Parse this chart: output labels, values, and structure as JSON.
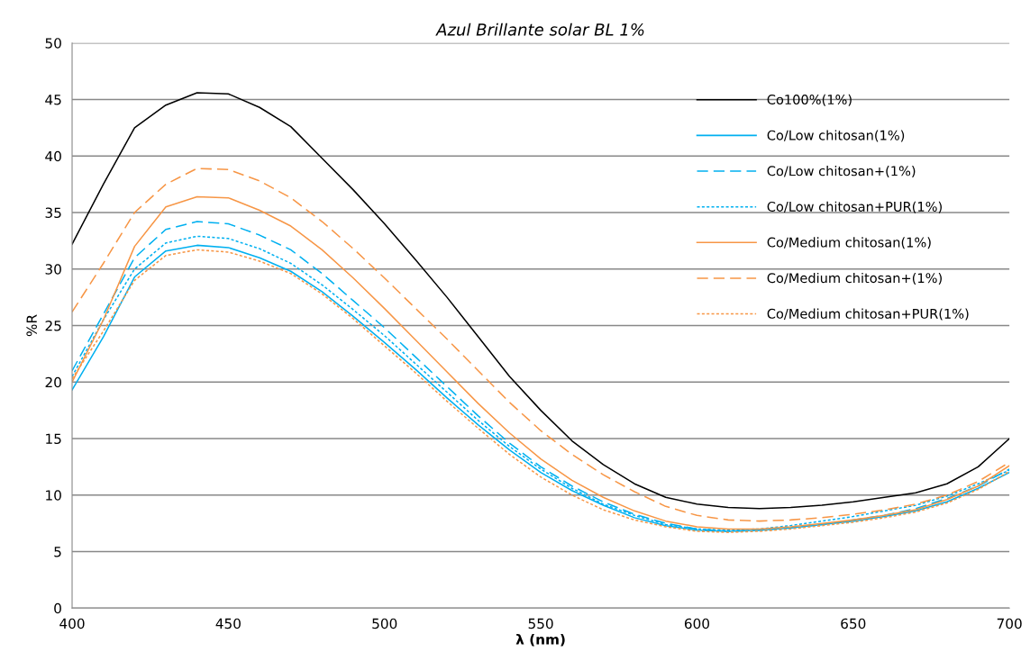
{
  "chart_data": {
    "type": "line",
    "title": "Azul Brillante solar BL 1%",
    "xlabel": "λ (nm)",
    "ylabel": "%R",
    "x": [
      400,
      410,
      420,
      430,
      440,
      450,
      460,
      470,
      480,
      490,
      500,
      510,
      520,
      530,
      540,
      550,
      560,
      570,
      580,
      590,
      600,
      610,
      620,
      630,
      640,
      650,
      660,
      670,
      680,
      690,
      700
    ],
    "xlim": [
      400,
      700
    ],
    "xticks": [
      400,
      450,
      500,
      550,
      600,
      650,
      700
    ],
    "ylim": [
      0,
      50
    ],
    "yticks": [
      0,
      5,
      10,
      15,
      20,
      25,
      30,
      35,
      40,
      45,
      50
    ],
    "grid": "y",
    "legend": "top right",
    "marker": "none",
    "series": [
      {
        "name": "Co100%(1%)",
        "color": "#000000",
        "line_style": "solid",
        "values": [
          32.2,
          37.5,
          42.5,
          44.5,
          45.6,
          45.5,
          44.3,
          42.6,
          39.8,
          37.0,
          34.0,
          30.8,
          27.5,
          24.0,
          20.5,
          17.5,
          14.8,
          12.7,
          11.0,
          9.8,
          9.2,
          8.9,
          8.8,
          8.9,
          9.1,
          9.4,
          9.8,
          10.2,
          11.0,
          12.5,
          15.0
        ]
      },
      {
        "name": "Co/Low chitosan(1%)",
        "color": "#00b0f0",
        "line_style": "solid",
        "values": [
          19.3,
          24.0,
          29.3,
          31.6,
          32.1,
          31.9,
          31.0,
          29.8,
          28.0,
          25.8,
          23.5,
          21.1,
          18.6,
          16.2,
          14.0,
          12.0,
          10.4,
          9.1,
          8.0,
          7.3,
          6.9,
          6.8,
          6.9,
          7.1,
          7.4,
          7.7,
          8.1,
          8.6,
          9.4,
          10.6,
          12.0
        ]
      },
      {
        "name": "Co/Low chitosan+(1%)",
        "color": "#00b0f0",
        "line_style": "dashed",
        "values": [
          21.0,
          26.0,
          31.0,
          33.5,
          34.2,
          34.0,
          33.0,
          31.7,
          29.6,
          27.2,
          24.8,
          22.2,
          19.6,
          17.0,
          14.6,
          12.5,
          10.8,
          9.4,
          8.3,
          7.5,
          7.0,
          6.8,
          6.9,
          7.1,
          7.4,
          7.8,
          8.2,
          8.8,
          9.7,
          10.8,
          12.3
        ]
      },
      {
        "name": "Co/Low chitosan+PUR(1%)",
        "color": "#00b0f0",
        "line_style": "dotted",
        "values": [
          20.5,
          25.5,
          30.0,
          32.3,
          32.9,
          32.7,
          31.8,
          30.5,
          28.6,
          26.4,
          24.1,
          21.6,
          19.1,
          16.6,
          14.3,
          12.3,
          10.6,
          9.2,
          8.2,
          7.4,
          7.0,
          6.9,
          7.0,
          7.3,
          7.7,
          8.1,
          8.6,
          9.1,
          9.9,
          11.0,
          12.2
        ]
      },
      {
        "name": "Co/Medium chitosan(1%)",
        "color": "#f79646",
        "line_style": "solid",
        "values": [
          20.0,
          25.5,
          32.0,
          35.5,
          36.4,
          36.3,
          35.2,
          33.8,
          31.7,
          29.2,
          26.5,
          23.7,
          20.9,
          18.1,
          15.5,
          13.2,
          11.3,
          9.8,
          8.6,
          7.7,
          7.2,
          7.0,
          7.0,
          7.2,
          7.5,
          7.8,
          8.2,
          8.7,
          9.6,
          10.8,
          12.6
        ]
      },
      {
        "name": "Co/Medium chitosan+(1%)",
        "color": "#f79646",
        "line_style": "dashed",
        "values": [
          26.2,
          30.5,
          35.0,
          37.5,
          38.9,
          38.8,
          37.8,
          36.3,
          34.2,
          31.8,
          29.2,
          26.5,
          23.8,
          21.0,
          18.2,
          15.7,
          13.6,
          11.8,
          10.3,
          9.0,
          8.2,
          7.8,
          7.7,
          7.8,
          8.0,
          8.3,
          8.7,
          9.2,
          10.0,
          11.2,
          12.9
        ]
      },
      {
        "name": "Co/Medium chitosan+PUR(1%)",
        "color": "#f79646",
        "line_style": "dotted",
        "values": [
          20.3,
          24.5,
          29.0,
          31.2,
          31.7,
          31.5,
          30.7,
          29.6,
          27.8,
          25.6,
          23.2,
          20.8,
          18.3,
          15.9,
          13.6,
          11.6,
          10.0,
          8.7,
          7.8,
          7.2,
          6.8,
          6.7,
          6.8,
          7.0,
          7.3,
          7.6,
          8.0,
          8.5,
          9.3,
          10.5,
          12.1
        ]
      }
    ]
  }
}
